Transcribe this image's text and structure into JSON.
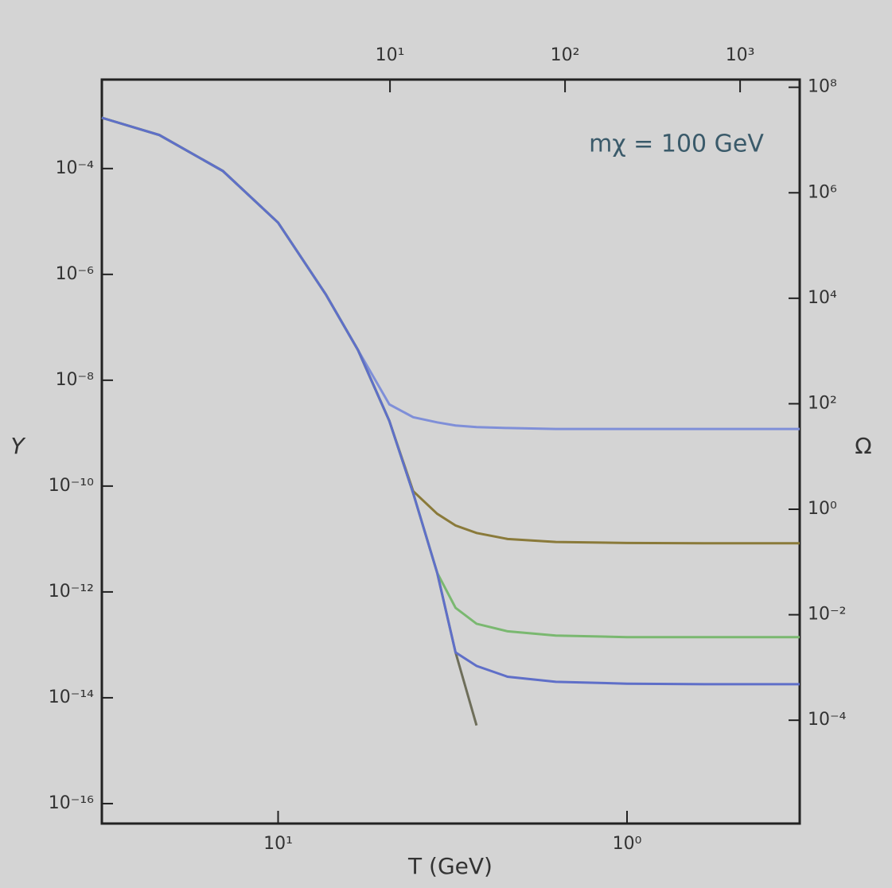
{
  "chart_data": {
    "type": "line",
    "annotation": "mχ = 100 GeV",
    "y_label": "Y",
    "x_label": "T (GeV)",
    "y2_label": "Ω",
    "log_x": true,
    "log_y": true,
    "x": [
      32,
      21.9,
      14.4,
      10,
      7.3,
      5.9,
      4.8,
      4.1,
      3.5,
      3.1,
      2.7,
      2.2,
      1.6,
      1,
      0.6,
      0.32
    ],
    "series": [
      {
        "color": "#6e6e5a",
        "values": [
          0.00091,
          0.00043,
          9e-05,
          9.5e-06,
          4.2e-07,
          3.7e-08,
          1.7e-09,
          7.3e-11,
          2.3e-12,
          7.2e-14,
          3e-15,
          null,
          null,
          null,
          null,
          null
        ]
      },
      {
        "color": "#7f8fd8",
        "values": [
          0.00091,
          0.00043,
          9e-05,
          9.5e-06,
          4.2e-07,
          3.7e-08,
          3.5e-09,
          2e-09,
          1.6e-09,
          1.4e-09,
          1.3e-09,
          1.25e-09,
          1.2e-09,
          1.2e-09,
          1.2e-09,
          1.2e-09
        ]
      },
      {
        "color": "#8a7a3a",
        "values": [
          0.00091,
          0.00043,
          9e-05,
          9.5e-06,
          4.2e-07,
          3.7e-08,
          1.7e-09,
          8e-11,
          3e-11,
          1.8e-11,
          1.3e-11,
          1e-11,
          8.8e-12,
          8.4e-12,
          8.3e-12,
          8.3e-12
        ]
      },
      {
        "color": "#7ab870",
        "values": [
          0.00091,
          0.00043,
          9e-05,
          9.5e-06,
          4.2e-07,
          3.7e-08,
          1.7e-09,
          7.3e-11,
          2.3e-12,
          5e-13,
          2.5e-13,
          1.8e-13,
          1.5e-13,
          1.4e-13,
          1.4e-13,
          1.4e-13
        ]
      },
      {
        "color": "#5f6fc8",
        "values": [
          0.00091,
          0.00043,
          9e-05,
          9.5e-06,
          4.2e-07,
          3.7e-08,
          1.7e-09,
          7.3e-11,
          2.3e-12,
          7.2e-14,
          4e-14,
          2.5e-14,
          2e-14,
          1.85e-14,
          1.8e-14,
          1.8e-14
        ]
      }
    ],
    "xlim": [
      32,
      0.32
    ],
    "xticks": [
      {
        "value": 10,
        "label": "10¹"
      },
      {
        "value": 1,
        "label": "10⁰"
      }
    ],
    "ylim": [
      0.0048,
      4.2e-17
    ],
    "yticks": [
      {
        "value": 0.0001,
        "label": "10⁻⁴"
      },
      {
        "value": 1e-06,
        "label": "10⁻⁶"
      },
      {
        "value": 1e-08,
        "label": "10⁻⁸"
      },
      {
        "value": 1e-10,
        "label": "10⁻¹⁰"
      },
      {
        "value": 1e-12,
        "label": "10⁻¹²"
      },
      {
        "value": 1e-14,
        "label": "10⁻¹⁴"
      },
      {
        "value": 1e-16,
        "label": "10⁻¹⁶"
      }
    ],
    "x2lim": [
      0.226,
      2190
    ],
    "x2ticks": [
      {
        "value": 10,
        "label": "10¹"
      },
      {
        "value": 100,
        "label": "10²"
      },
      {
        "value": 1000,
        "label": "10³"
      }
    ],
    "y2lim": [
      140000000.0,
      1.1e-06
    ],
    "y2ticks": [
      {
        "value": 100000000.0,
        "label": "10⁸"
      },
      {
        "value": 1000000.0,
        "label": "10⁶"
      },
      {
        "value": 10000.0,
        "label": "10⁴"
      },
      {
        "value": 100,
        "label": "10²"
      },
      {
        "value": 1,
        "label": "10⁰"
      },
      {
        "value": 0.01,
        "label": "10⁻²"
      },
      {
        "value": 0.0001,
        "label": "10⁻⁴"
      }
    ]
  }
}
